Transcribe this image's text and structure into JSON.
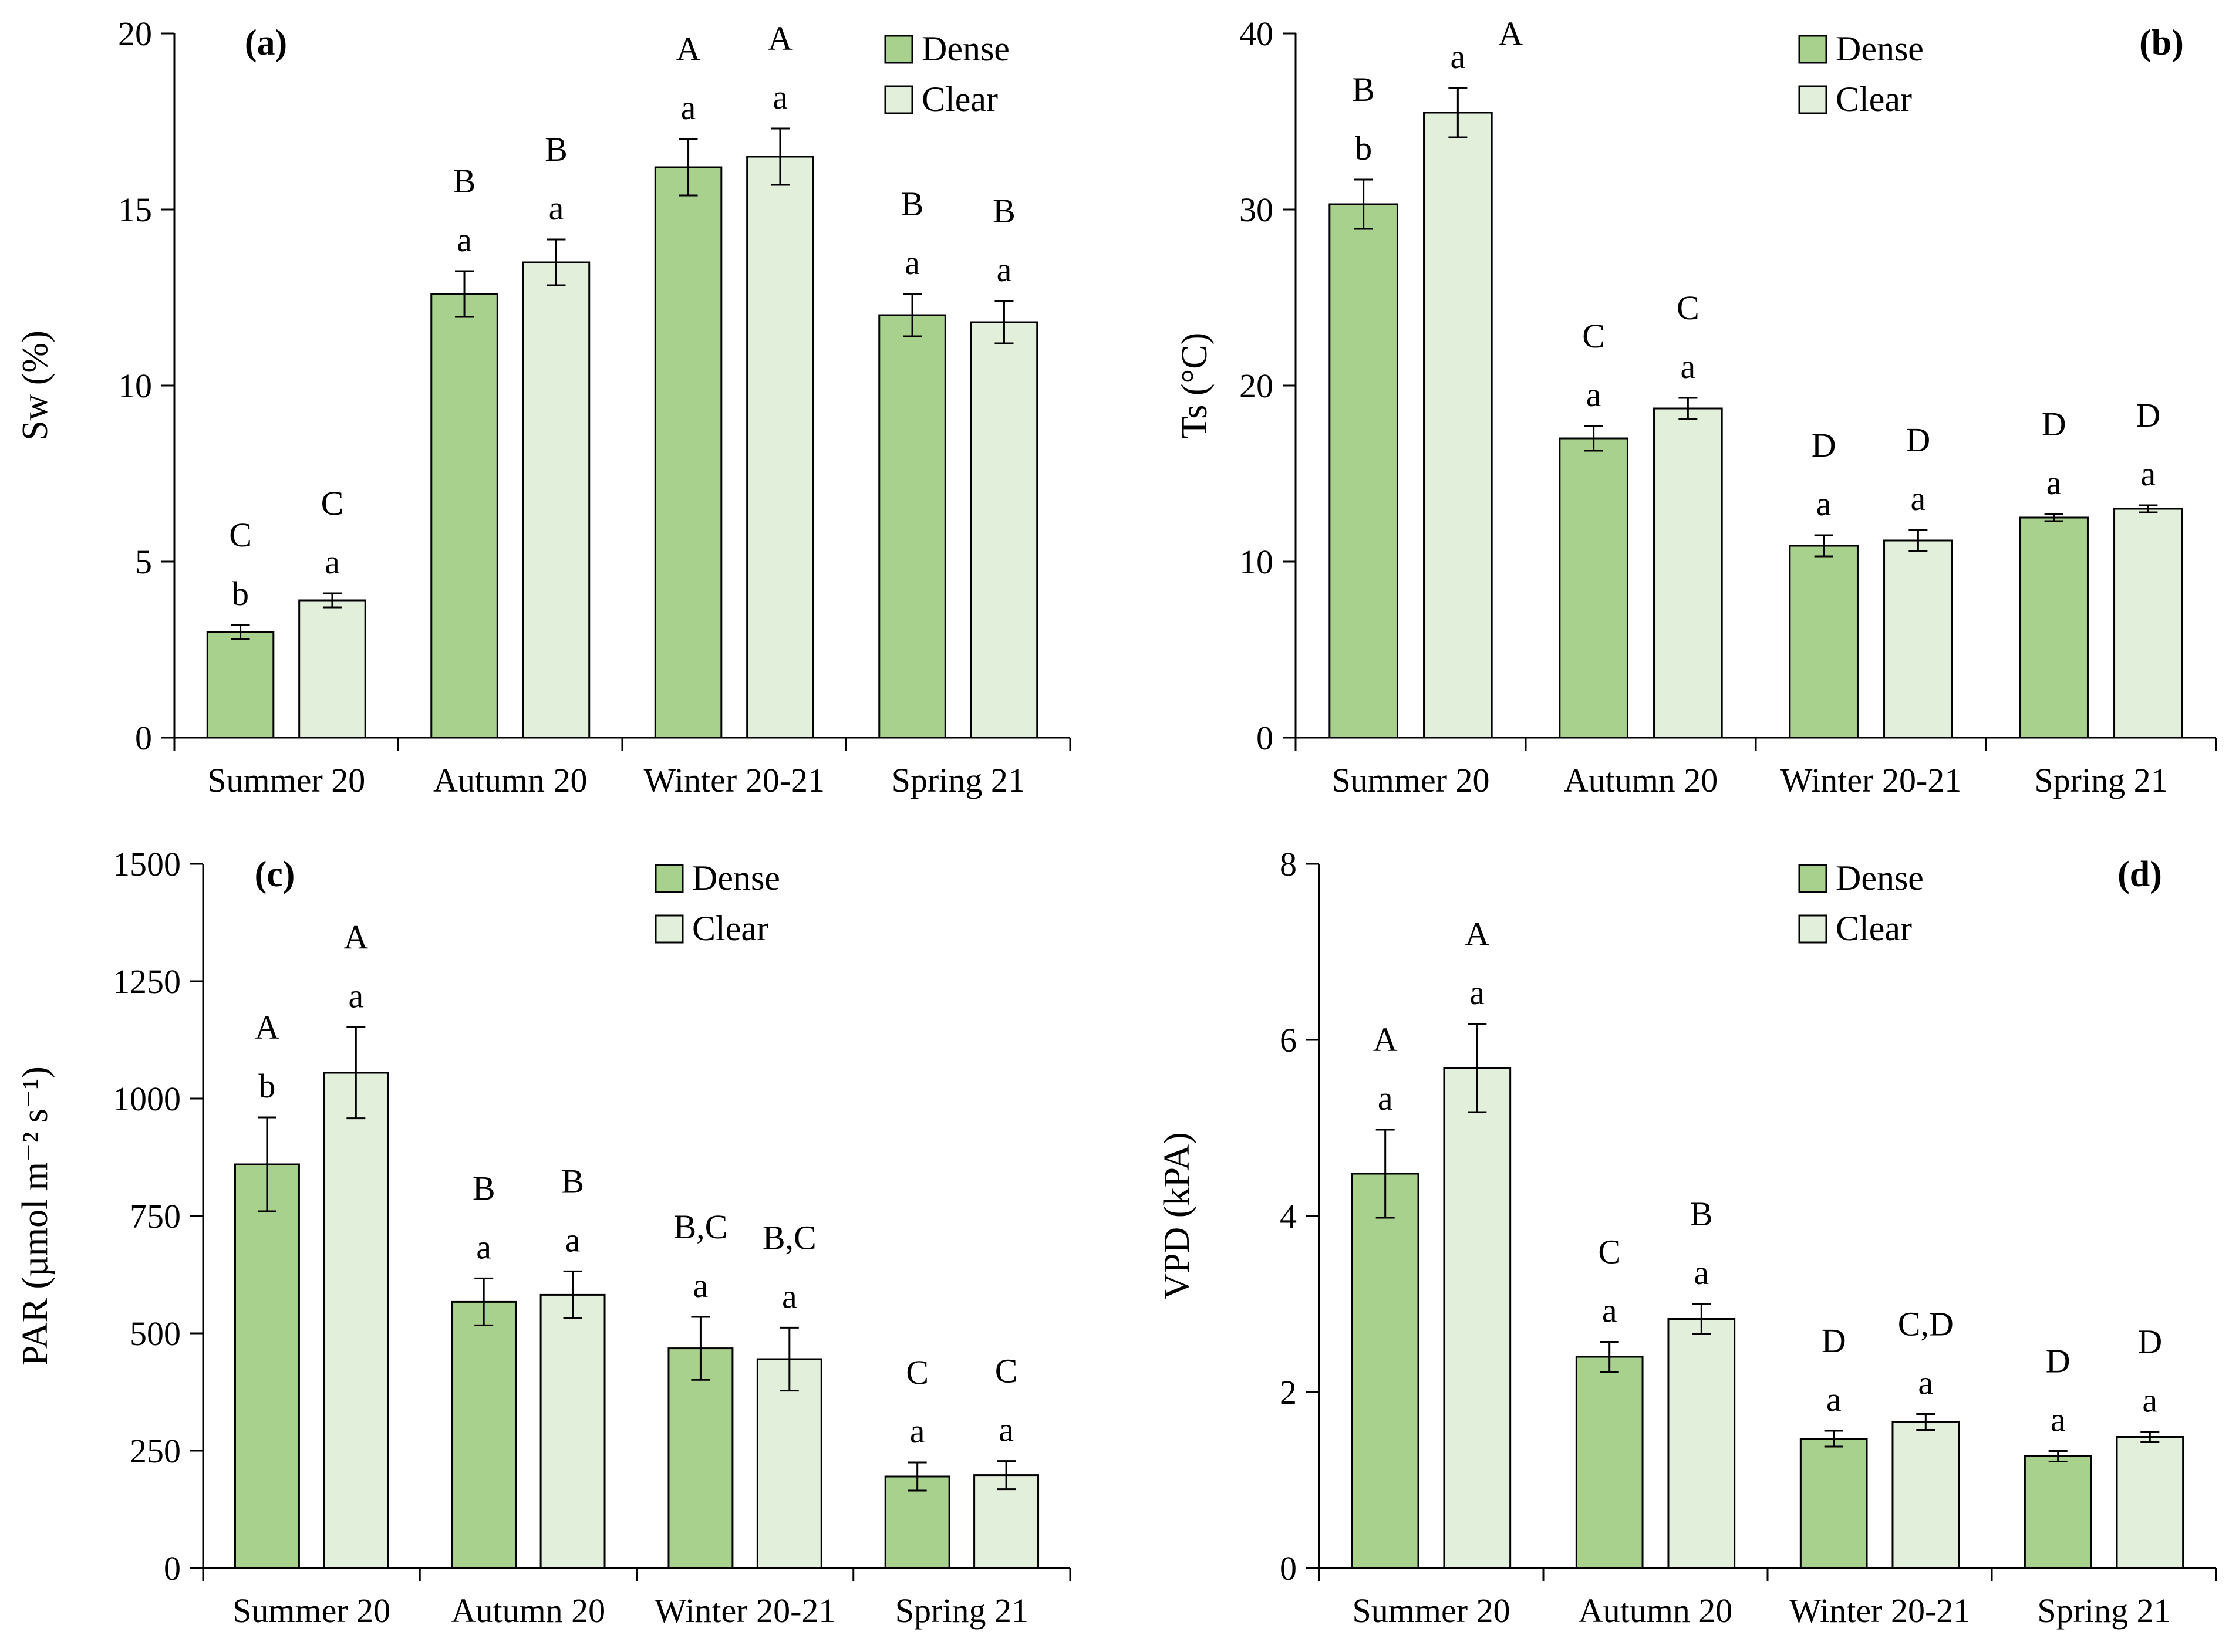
{
  "colors": {
    "dense": "#a9d18e",
    "clear": "#e2efda",
    "stroke": "#000000"
  },
  "chart_data": [
    {
      "type": "bar",
      "panel_label": "(a)",
      "ylabel": "Sw (%)",
      "ylim": [
        0,
        20
      ],
      "yticks": [
        0,
        5,
        10,
        15,
        20
      ],
      "ytick_labels": [
        "0",
        "5",
        "10",
        "15",
        "20"
      ],
      "legend_position": "top-right",
      "categories": [
        "Summer 20",
        "Autumn 20",
        "Winter 20-21",
        "Spring 21"
      ],
      "series": [
        {
          "name": "Dense",
          "values": [
            3.0,
            12.6,
            16.2,
            12.0
          ],
          "errors": [
            0.2,
            0.65,
            0.8,
            0.6
          ],
          "upper_letters": [
            "C",
            "B",
            "A",
            "B"
          ],
          "lower_letters": [
            "b",
            "a",
            "a",
            "a"
          ]
        },
        {
          "name": "Clear",
          "values": [
            3.9,
            13.5,
            16.5,
            11.8
          ],
          "errors": [
            0.2,
            0.65,
            0.8,
            0.6
          ],
          "upper_letters": [
            "C",
            "B",
            "A",
            "B"
          ],
          "lower_letters": [
            "a",
            "a",
            "a",
            "a"
          ]
        }
      ]
    },
    {
      "type": "bar",
      "panel_label": "(b)",
      "ylabel": "Ts (°C)",
      "ylim": [
        0,
        40
      ],
      "yticks": [
        0,
        10,
        20,
        30,
        40
      ],
      "ytick_labels": [
        "0",
        "10",
        "20",
        "30",
        "40"
      ],
      "legend_position": "top-center",
      "categories": [
        "Summer 20",
        "Autumn 20",
        "Winter 20-21",
        "Spring 21"
      ],
      "series": [
        {
          "name": "Dense",
          "values": [
            30.3,
            17.0,
            10.9,
            12.5
          ],
          "errors": [
            1.4,
            0.7,
            0.6,
            0.2
          ],
          "upper_letters": [
            "B",
            "C",
            "D",
            "D"
          ],
          "lower_letters": [
            "b",
            "a",
            "a",
            "a"
          ]
        },
        {
          "name": "Clear",
          "values": [
            35.5,
            18.7,
            11.2,
            13.0
          ],
          "errors": [
            1.4,
            0.6,
            0.6,
            0.2
          ],
          "upper_letters": [
            "A",
            "C",
            "D",
            "D"
          ],
          "lower_letters": [
            "a",
            "a",
            "a",
            "a"
          ]
        }
      ]
    },
    {
      "type": "bar",
      "panel_label": "(c)",
      "ylabel": "PAR (µmol m⁻² s⁻¹)",
      "ylim": [
        0,
        1500
      ],
      "yticks": [
        0,
        250,
        500,
        750,
        1000,
        1250,
        1500
      ],
      "ytick_labels": [
        "0",
        "250",
        "500",
        "750",
        "1000",
        "1250",
        "1500"
      ],
      "legend_position": "top-center",
      "categories": [
        "Summer 20",
        "Autumn 20",
        "Winter 20-21",
        "Spring 21"
      ],
      "series": [
        {
          "name": "Dense",
          "values": [
            860,
            567,
            468,
            195
          ],
          "errors": [
            100,
            50,
            67,
            30
          ],
          "upper_letters": [
            "A",
            "B",
            "B,C",
            "C"
          ],
          "lower_letters": [
            "b",
            "a",
            "a",
            "a"
          ]
        },
        {
          "name": "Clear",
          "values": [
            1055,
            582,
            445,
            198
          ],
          "errors": [
            97,
            50,
            67,
            30
          ],
          "upper_letters": [
            "A",
            "B",
            "B,C",
            "C"
          ],
          "lower_letters": [
            "a",
            "a",
            "a",
            "a"
          ]
        }
      ]
    },
    {
      "type": "bar",
      "panel_label": "(d)",
      "ylabel": "VPD (kPA)",
      "ylim": [
        0,
        8
      ],
      "yticks": [
        0,
        2,
        4,
        6,
        8
      ],
      "ytick_labels": [
        "0",
        "2",
        "4",
        "6",
        "8"
      ],
      "legend_position": "top-center",
      "categories": [
        "Summer 20",
        "Autumn 20",
        "Winter 20-21",
        "Spring 21"
      ],
      "series": [
        {
          "name": "Dense",
          "values": [
            4.48,
            2.4,
            1.47,
            1.27
          ],
          "errors": [
            0.5,
            0.17,
            0.09,
            0.06
          ],
          "upper_letters": [
            "A",
            "C",
            "D",
            "D"
          ],
          "lower_letters": [
            "a",
            "a",
            "a",
            "a"
          ]
        },
        {
          "name": "Clear",
          "values": [
            5.68,
            2.83,
            1.66,
            1.49
          ],
          "errors": [
            0.5,
            0.17,
            0.09,
            0.06
          ],
          "upper_letters": [
            "A",
            "B",
            "C,D",
            "D"
          ],
          "lower_letters": [
            "a",
            "a",
            "a",
            "a"
          ]
        }
      ]
    }
  ]
}
